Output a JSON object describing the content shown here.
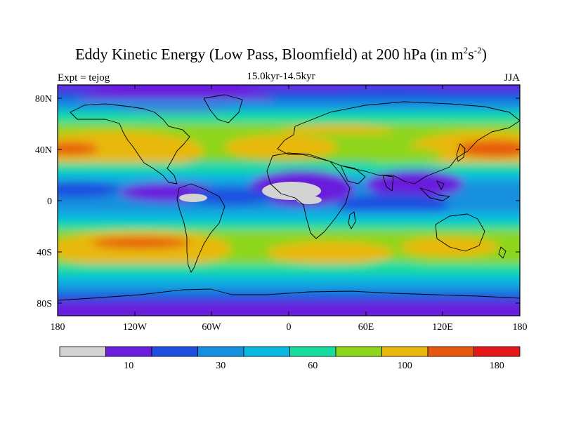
{
  "title": {
    "main": "Eddy Kinetic Energy (Low Pass, Bloomfield) at 200 hPa (in m",
    "sup1": "2",
    "mid": "s",
    "sup2": "-2",
    "close": ")"
  },
  "subtitle": "15.0kyr-14.5kyr",
  "left_label": "Expt = tejog",
  "right_label": "JJA",
  "map": {
    "projection": "cylindrical equidistant",
    "lon_range": [
      -180,
      180
    ],
    "lat_range": [
      -90,
      90
    ],
    "lat_ticks": [
      "80N",
      "40N",
      "0",
      "40S",
      "80S"
    ],
    "lon_ticks": [
      "180",
      "120W",
      "60W",
      "0",
      "60E",
      "120E",
      "180"
    ]
  },
  "colorbar": {
    "colors": [
      "#d3d3d3",
      "#6a1fdd",
      "#1f4fe0",
      "#1490de",
      "#0bb8e0",
      "#17dca0",
      "#8ed61c",
      "#e8b80e",
      "#e65a10",
      "#e4171b"
    ],
    "labels": [
      {
        "text": "10",
        "boundary": 2
      },
      {
        "text": "30",
        "boundary": 4
      },
      {
        "text": "60",
        "boundary": 6
      },
      {
        "text": "100",
        "boundary": 8
      },
      {
        "text": "180",
        "boundary": 10
      }
    ]
  }
}
